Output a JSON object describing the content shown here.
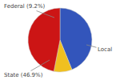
{
  "chart_data": {
    "type": "pie",
    "values": [
      43.9,
      9.2,
      46.9
    ],
    "colors": [
      "#3355bb",
      "#f0c020",
      "#cc1515"
    ],
    "annotations": [
      "Federal (9.2%)",
      "Local",
      "State (46.9%)"
    ]
  }
}
